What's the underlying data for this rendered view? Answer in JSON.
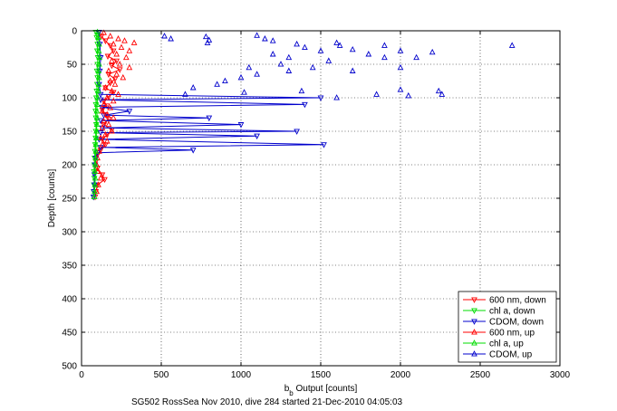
{
  "chart_data": {
    "type": "scatter",
    "title": "",
    "caption": "SG502 RossSea Nov 2010, dive 284 started 21-Dec-2010 04:05:03",
    "xlabel": "b",
    "xlabel_sub": "b",
    "xlabel_rest": " Output [counts]",
    "ylabel": "Depth [counts]",
    "xlim": [
      0,
      3000
    ],
    "ylim": [
      0,
      500
    ],
    "y_reversed": true,
    "grid": true,
    "legend_position": "bottom-right",
    "x_ticks": [
      "0",
      "500",
      "1000",
      "1500",
      "2000",
      "2500",
      "3000"
    ],
    "y_ticks": [
      "0",
      "50",
      "100",
      "150",
      "200",
      "250",
      "300",
      "350",
      "400",
      "450",
      "500"
    ],
    "series": [
      {
        "name": "600 nm, down",
        "color": "#ff0000",
        "marker": "triangle-down",
        "line": true,
        "points": [
          [
            110,
            2
          ],
          [
            125,
            8
          ],
          [
            150,
            15
          ],
          [
            180,
            22
          ],
          [
            200,
            30
          ],
          [
            165,
            38
          ],
          [
            220,
            45
          ],
          [
            190,
            52
          ],
          [
            240,
            58
          ],
          [
            170,
            65
          ],
          [
            210,
            72
          ],
          [
            180,
            78
          ],
          [
            150,
            85
          ],
          [
            200,
            92
          ],
          [
            170,
            98
          ],
          [
            140,
            105
          ],
          [
            160,
            112
          ],
          [
            130,
            118
          ],
          [
            150,
            125
          ],
          [
            170,
            132
          ],
          [
            140,
            140
          ],
          [
            190,
            148
          ],
          [
            160,
            155
          ],
          [
            130,
            162
          ],
          [
            150,
            170
          ],
          [
            120,
            178
          ],
          [
            100,
            185
          ],
          [
            90,
            195
          ],
          [
            100,
            205
          ],
          [
            130,
            215
          ],
          [
            145,
            222
          ],
          [
            100,
            230
          ],
          [
            90,
            240
          ],
          [
            85,
            248
          ]
        ]
      },
      {
        "name": "chl a, down",
        "color": "#00dd00",
        "marker": "triangle-down",
        "line": true,
        "points": [
          [
            90,
            2
          ],
          [
            95,
            10
          ],
          [
            100,
            20
          ],
          [
            98,
            30
          ],
          [
            102,
            40
          ],
          [
            100,
            50
          ],
          [
            96,
            60
          ],
          [
            100,
            70
          ],
          [
            98,
            80
          ],
          [
            95,
            90
          ],
          [
            92,
            100
          ],
          [
            90,
            110
          ],
          [
            88,
            120
          ],
          [
            90,
            130
          ],
          [
            92,
            140
          ],
          [
            90,
            150
          ],
          [
            88,
            160
          ],
          [
            86,
            170
          ],
          [
            84,
            180
          ],
          [
            82,
            190
          ],
          [
            80,
            200
          ],
          [
            78,
            210
          ],
          [
            80,
            220
          ],
          [
            78,
            230
          ],
          [
            76,
            240
          ],
          [
            75,
            248
          ]
        ]
      },
      {
        "name": "CDOM, down",
        "color": "#0000cc",
        "marker": "triangle-down",
        "line": true,
        "points": [
          [
            110,
            2
          ],
          [
            115,
            20
          ],
          [
            120,
            40
          ],
          [
            115,
            60
          ],
          [
            110,
            80
          ],
          [
            120,
            95
          ],
          [
            1500,
            100
          ],
          [
            120,
            103
          ],
          [
            1400,
            110
          ],
          [
            130,
            114
          ],
          [
            300,
            120
          ],
          [
            140,
            126
          ],
          [
            800,
            130
          ],
          [
            120,
            134
          ],
          [
            1000,
            140
          ],
          [
            130,
            145
          ],
          [
            1350,
            150
          ],
          [
            120,
            152
          ],
          [
            1100,
            157
          ],
          [
            110,
            162
          ],
          [
            1520,
            170
          ],
          [
            120,
            174
          ],
          [
            700,
            178
          ],
          [
            100,
            182
          ],
          [
            90,
            190
          ],
          [
            85,
            200
          ],
          [
            80,
            215
          ],
          [
            82,
            230
          ],
          [
            78,
            240
          ],
          [
            75,
            248
          ]
        ]
      },
      {
        "name": "600 nm, up",
        "color": "#ff0000",
        "marker": "triangle-up",
        "line": false,
        "points": [
          [
            140,
            3
          ],
          [
            180,
            8
          ],
          [
            230,
            12
          ],
          [
            270,
            15
          ],
          [
            330,
            18
          ],
          [
            200,
            20
          ],
          [
            250,
            25
          ],
          [
            300,
            30
          ],
          [
            220,
            35
          ],
          [
            280,
            40
          ],
          [
            190,
            45
          ],
          [
            240,
            50
          ],
          [
            300,
            55
          ],
          [
            170,
            60
          ],
          [
            220,
            65
          ],
          [
            260,
            70
          ],
          [
            180,
            75
          ],
          [
            210,
            80
          ],
          [
            150,
            85
          ],
          [
            190,
            90
          ],
          [
            230,
            95
          ],
          [
            160,
            100
          ],
          [
            200,
            105
          ],
          [
            140,
            110
          ],
          [
            180,
            115
          ],
          [
            130,
            120
          ],
          [
            160,
            125
          ],
          [
            200,
            130
          ],
          [
            140,
            135
          ],
          [
            170,
            140
          ],
          [
            130,
            145
          ],
          [
            190,
            150
          ],
          [
            150,
            155
          ],
          [
            120,
            160
          ],
          [
            160,
            165
          ],
          [
            130,
            170
          ],
          [
            110,
            180
          ],
          [
            100,
            190
          ],
          [
            95,
            200
          ],
          [
            100,
            210
          ],
          [
            120,
            220
          ],
          [
            105,
            230
          ],
          [
            95,
            240
          ]
        ]
      },
      {
        "name": "chl a, up",
        "color": "#00dd00",
        "marker": "triangle-up",
        "line": true,
        "points": [
          [
            100,
            2
          ],
          [
            105,
            10
          ],
          [
            110,
            20
          ],
          [
            108,
            30
          ],
          [
            112,
            40
          ],
          [
            110,
            50
          ],
          [
            106,
            60
          ],
          [
            110,
            70
          ],
          [
            108,
            80
          ],
          [
            104,
            90
          ],
          [
            100,
            100
          ],
          [
            98,
            110
          ],
          [
            96,
            120
          ],
          [
            98,
            130
          ],
          [
            96,
            140
          ],
          [
            94,
            150
          ],
          [
            92,
            160
          ],
          [
            90,
            170
          ],
          [
            90,
            180
          ],
          [
            88,
            190
          ],
          [
            86,
            200
          ],
          [
            84,
            210
          ],
          [
            86,
            220
          ],
          [
            84,
            230
          ],
          [
            82,
            240
          ],
          [
            80,
            248
          ]
        ]
      },
      {
        "name": "CDOM, up",
        "color": "#0000cc",
        "marker": "triangle-up",
        "line": false,
        "points": [
          [
            520,
            8
          ],
          [
            560,
            12
          ],
          [
            780,
            9
          ],
          [
            800,
            14
          ],
          [
            790,
            18
          ],
          [
            1100,
            7
          ],
          [
            1150,
            12
          ],
          [
            1200,
            15
          ],
          [
            1350,
            20
          ],
          [
            1400,
            25
          ],
          [
            1600,
            18
          ],
          [
            1620,
            22
          ],
          [
            1500,
            30
          ],
          [
            1700,
            28
          ],
          [
            1900,
            22
          ],
          [
            2000,
            30
          ],
          [
            1800,
            35
          ],
          [
            2100,
            40
          ],
          [
            2200,
            32
          ],
          [
            2700,
            22
          ],
          [
            1550,
            45
          ],
          [
            1450,
            55
          ],
          [
            1300,
            60
          ],
          [
            1250,
            50
          ],
          [
            1050,
            55
          ],
          [
            1100,
            65
          ],
          [
            1000,
            70
          ],
          [
            900,
            75
          ],
          [
            850,
            80
          ],
          [
            700,
            85
          ],
          [
            650,
            95
          ],
          [
            1020,
            92
          ],
          [
            1380,
            90
          ],
          [
            1600,
            100
          ],
          [
            1850,
            95
          ],
          [
            2000,
            88
          ],
          [
            2050,
            97
          ],
          [
            2240,
            90
          ],
          [
            2260,
            95
          ],
          [
            1900,
            40
          ],
          [
            2000,
            55
          ],
          [
            1700,
            60
          ],
          [
            1200,
            35
          ],
          [
            1300,
            40
          ]
        ]
      }
    ]
  }
}
